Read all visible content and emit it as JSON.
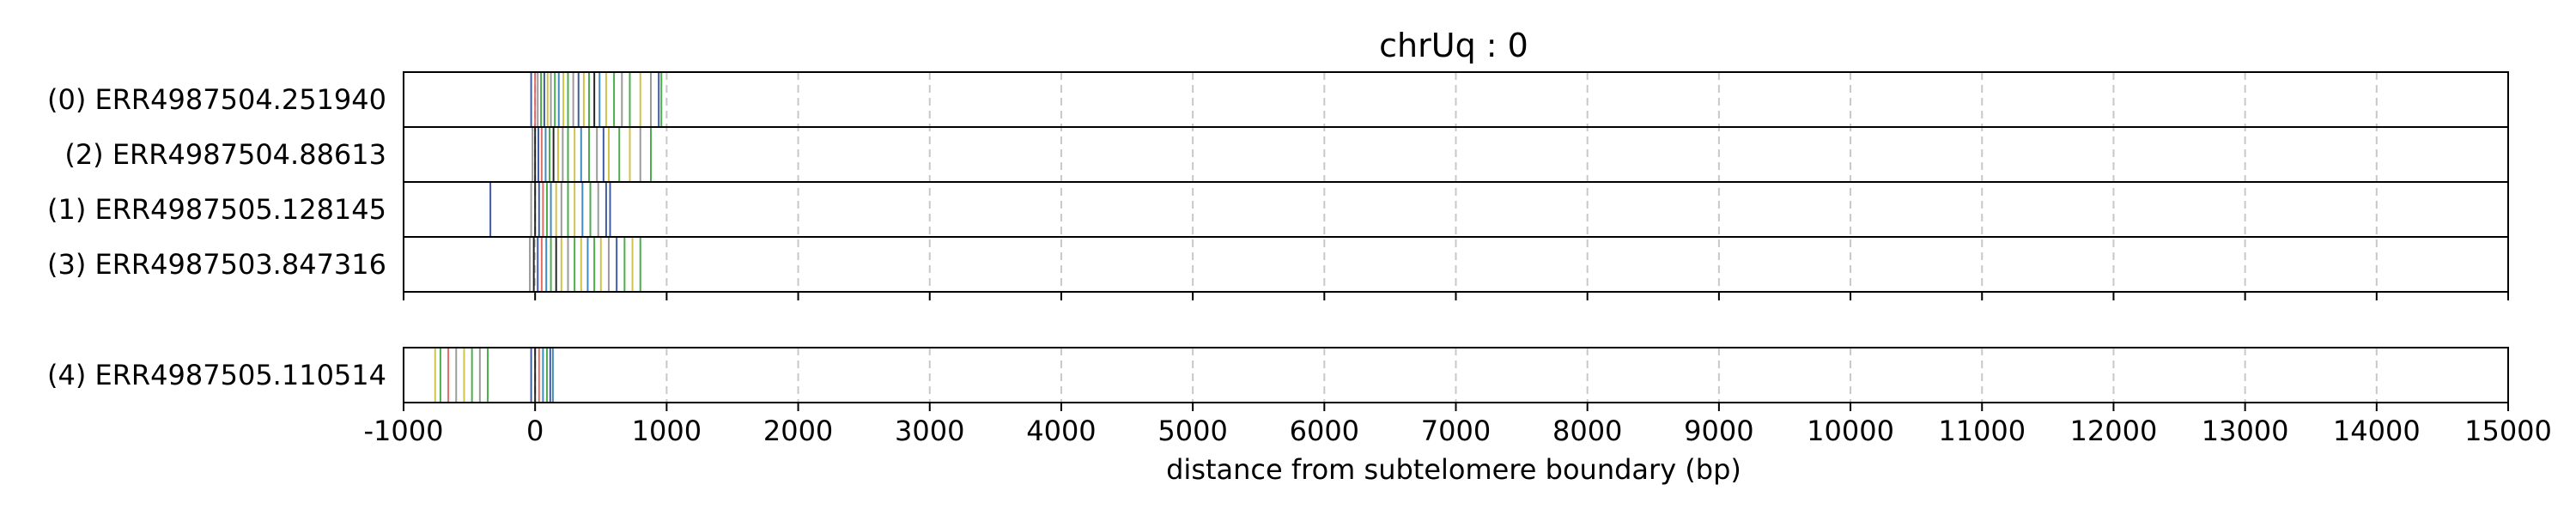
{
  "chart_data": {
    "type": "read-tracks",
    "title": "chrUq : 0",
    "xlabel": "distance from subtelomere boundary (bp)",
    "xlim": [
      -1000,
      15000
    ],
    "xticks": [
      -1000,
      0,
      1000,
      2000,
      3000,
      4000,
      5000,
      6000,
      7000,
      8000,
      9000,
      10000,
      11000,
      12000,
      13000,
      14000,
      15000
    ],
    "grid": "vertical-dashed",
    "groups": [
      {
        "tracks": [
          {
            "label": "(0) ERR4987504.251940",
            "marks": [
              {
                "x": -30,
                "color": "#1f3f8f"
              },
              {
                "x": 0,
                "color": "#d9534f"
              },
              {
                "x": 20,
                "color": "#8a8a8a"
              },
              {
                "x": 45,
                "color": "#2ca02c"
              },
              {
                "x": 70,
                "color": "#1f3f8f"
              },
              {
                "x": 95,
                "color": "#c9b82a"
              },
              {
                "x": 120,
                "color": "#8a8a8a"
              },
              {
                "x": 150,
                "color": "#2ca02c"
              },
              {
                "x": 180,
                "color": "#1f77b4"
              },
              {
                "x": 215,
                "color": "#c9b82a"
              },
              {
                "x": 250,
                "color": "#2ca02c"
              },
              {
                "x": 290,
                "color": "#8a8a8a"
              },
              {
                "x": 330,
                "color": "#1f3f8f"
              },
              {
                "x": 370,
                "color": "#c9b82a"
              },
              {
                "x": 410,
                "color": "#2ca02c"
              },
              {
                "x": 450,
                "color": "#000000"
              },
              {
                "x": 490,
                "color": "#1f77b4"
              },
              {
                "x": 540,
                "color": "#c9b82a"
              },
              {
                "x": 600,
                "color": "#2ca02c"
              },
              {
                "x": 660,
                "color": "#8a8a8a"
              },
              {
                "x": 720,
                "color": "#2ca02c"
              },
              {
                "x": 800,
                "color": "#c9b82a"
              },
              {
                "x": 880,
                "color": "#8a8a8a"
              },
              {
                "x": 940,
                "color": "#1f3f8f"
              },
              {
                "x": 960,
                "color": "#2ca02c"
              }
            ]
          },
          {
            "label": "(2) ERR4987504.88613",
            "marks": [
              {
                "x": -20,
                "color": "#8a8a8a"
              },
              {
                "x": 0,
                "color": "#000000"
              },
              {
                "x": 25,
                "color": "#1f3f8f"
              },
              {
                "x": 50,
                "color": "#d9534f"
              },
              {
                "x": 80,
                "color": "#1f77b4"
              },
              {
                "x": 110,
                "color": "#2ca02c"
              },
              {
                "x": 140,
                "color": "#000000"
              },
              {
                "x": 175,
                "color": "#c9b82a"
              },
              {
                "x": 210,
                "color": "#8a8a8a"
              },
              {
                "x": 250,
                "color": "#2ca02c"
              },
              {
                "x": 300,
                "color": "#c9b82a"
              },
              {
                "x": 350,
                "color": "#1f77b4"
              },
              {
                "x": 410,
                "color": "#2ca02c"
              },
              {
                "x": 470,
                "color": "#8a8a8a"
              },
              {
                "x": 520,
                "color": "#1f3f8f"
              },
              {
                "x": 560,
                "color": "#c9b82a"
              },
              {
                "x": 640,
                "color": "#2ca02c"
              },
              {
                "x": 720,
                "color": "#c9b82a"
              },
              {
                "x": 800,
                "color": "#8a8a8a"
              },
              {
                "x": 880,
                "color": "#2ca02c"
              }
            ]
          },
          {
            "label": "(1) ERR4987505.128145",
            "marks": [
              {
                "x": -340,
                "color": "#1f3f8f"
              },
              {
                "x": -30,
                "color": "#8a8a8a"
              },
              {
                "x": 0,
                "color": "#000000"
              },
              {
                "x": 30,
                "color": "#1f3f8f"
              },
              {
                "x": 60,
                "color": "#d9534f"
              },
              {
                "x": 90,
                "color": "#2ca02c"
              },
              {
                "x": 120,
                "color": "#1f77b4"
              },
              {
                "x": 160,
                "color": "#c9b82a"
              },
              {
                "x": 200,
                "color": "#8a8a8a"
              },
              {
                "x": 250,
                "color": "#2ca02c"
              },
              {
                "x": 300,
                "color": "#c9b82a"
              },
              {
                "x": 360,
                "color": "#1f77b4"
              },
              {
                "x": 420,
                "color": "#2ca02c"
              },
              {
                "x": 480,
                "color": "#8a8a8a"
              },
              {
                "x": 540,
                "color": "#1f3f8f"
              },
              {
                "x": 570,
                "color": "#1f3f8f"
              }
            ]
          },
          {
            "label": "(3) ERR4987503.847316",
            "marks": [
              {
                "x": -40,
                "color": "#8a8a8a"
              },
              {
                "x": -10,
                "color": "#000000"
              },
              {
                "x": 20,
                "color": "#1f3f8f"
              },
              {
                "x": 50,
                "color": "#d9534f"
              },
              {
                "x": 85,
                "color": "#1f77b4"
              },
              {
                "x": 120,
                "color": "#2ca02c"
              },
              {
                "x": 160,
                "color": "#000000"
              },
              {
                "x": 200,
                "color": "#c9b82a"
              },
              {
                "x": 250,
                "color": "#8a8a8a"
              },
              {
                "x": 300,
                "color": "#2ca02c"
              },
              {
                "x": 350,
                "color": "#c9b82a"
              },
              {
                "x": 400,
                "color": "#1f77b4"
              },
              {
                "x": 450,
                "color": "#2ca02c"
              },
              {
                "x": 500,
                "color": "#c9b82a"
              },
              {
                "x": 560,
                "color": "#8a8a8a"
              },
              {
                "x": 620,
                "color": "#1f3f8f"
              },
              {
                "x": 680,
                "color": "#2ca02c"
              },
              {
                "x": 740,
                "color": "#c9b82a"
              },
              {
                "x": 800,
                "color": "#2ca02c"
              }
            ]
          }
        ]
      },
      {
        "tracks": [
          {
            "label": "(4) ERR4987505.110514",
            "marks": [
              {
                "x": -760,
                "color": "#c9b82a"
              },
              {
                "x": -720,
                "color": "#2ca02c"
              },
              {
                "x": -660,
                "color": "#d9534f"
              },
              {
                "x": -600,
                "color": "#8a8a8a"
              },
              {
                "x": -540,
                "color": "#c9b82a"
              },
              {
                "x": -480,
                "color": "#2ca02c"
              },
              {
                "x": -420,
                "color": "#8a8a8a"
              },
              {
                "x": -360,
                "color": "#2ca02c"
              },
              {
                "x": -30,
                "color": "#1f3f8f"
              },
              {
                "x": 0,
                "color": "#000000"
              },
              {
                "x": 30,
                "color": "#d9534f"
              },
              {
                "x": 60,
                "color": "#1f77b4"
              },
              {
                "x": 90,
                "color": "#2ca02c"
              },
              {
                "x": 115,
                "color": "#1f3f8f"
              },
              {
                "x": 135,
                "color": "#1f77b4"
              }
            ]
          }
        ]
      }
    ]
  }
}
